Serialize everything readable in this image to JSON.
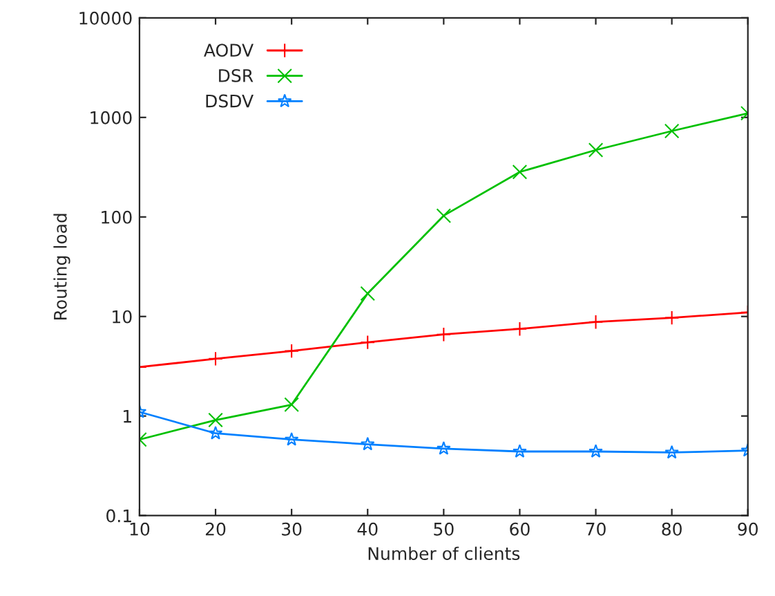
{
  "chart_data": {
    "type": "line",
    "xlabel": "Number of clients",
    "ylabel": "Routing load",
    "x": [
      10,
      20,
      30,
      40,
      50,
      60,
      70,
      80,
      90
    ],
    "series": [
      {
        "name": "AODV",
        "color": "#ff0000",
        "marker": "plus",
        "values": [
          3.1,
          3.76,
          4.5,
          5.5,
          6.6,
          7.5,
          8.8,
          9.7,
          11
        ]
      },
      {
        "name": "DSR",
        "color": "#00c000",
        "marker": "cross",
        "values": [
          0.58,
          0.91,
          1.3,
          17,
          103,
          283,
          470,
          730,
          1100
        ]
      },
      {
        "name": "DSDV",
        "color": "#0080ff",
        "marker": "star",
        "values": [
          1.1,
          0.67,
          0.58,
          0.52,
          0.47,
          0.44,
          0.44,
          0.43,
          0.45
        ]
      }
    ],
    "log": "y",
    "xlim": [
      10,
      90
    ],
    "xticks": [
      10,
      20,
      30,
      40,
      50,
      60,
      70,
      80,
      90
    ],
    "ylim": [
      0.1,
      10000
    ],
    "yticks": [
      0.1,
      1,
      10,
      100,
      1000,
      10000
    ],
    "grid": false,
    "legend": "top left",
    "line_style": "solid"
  }
}
